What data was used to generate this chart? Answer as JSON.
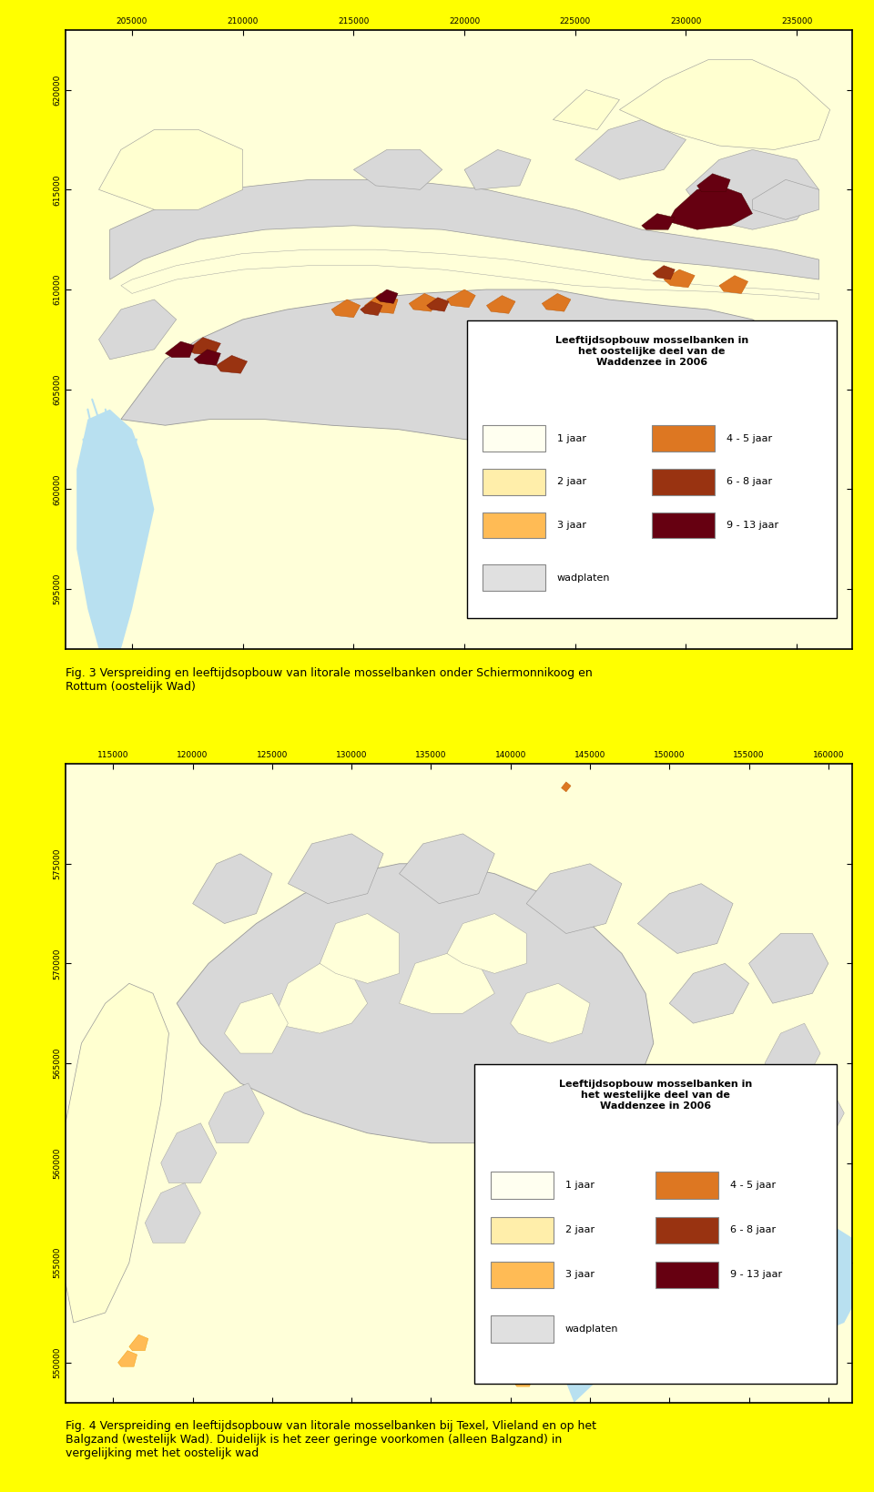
{
  "fig_width": 9.6,
  "fig_height": 16.39,
  "bg_color": "#ffffff",
  "outer_bg": "#ffff00",
  "map_sea_color": "#ffffd9",
  "map_wadplaten_color": "#d8d8d8",
  "map_water_channel_color": "#b8e0f0",
  "map_outline_color": "#999999",
  "map_border_color": "#000000",
  "map1": {
    "xlim": [
      202000,
      237500
    ],
    "ylim": [
      592000,
      623000
    ],
    "xticks": [
      205000,
      210000,
      215000,
      220000,
      225000,
      230000,
      235000
    ],
    "yticks": [
      595000,
      600000,
      605000,
      610000,
      615000,
      620000
    ],
    "title": "Leeftijdsopbouw mosselbanken in\nhet oostelijke deel van de\nWaddenzee in 2006",
    "legend_items_col1": [
      {
        "label": "1 jaar",
        "color": "#fffff0"
      },
      {
        "label": "2 jaar",
        "color": "#ffeeaa"
      },
      {
        "label": "3 jaar",
        "color": "#ffbb55"
      }
    ],
    "legend_items_col2": [
      {
        "label": "4 - 5 jaar",
        "color": "#dd7722"
      },
      {
        "label": "6 - 8 jaar",
        "color": "#993311"
      },
      {
        "label": "9 - 13 jaar",
        "color": "#660011"
      }
    ],
    "legend_wadplaten": {
      "label": "wadplaten",
      "color": "#e0e0e0"
    },
    "caption": "Fig. 3 Verspreiding en leeftijdsopbouw van litorale mosselbanken onder Schiermonnikoog en\nRottum (oostelijk Wad)"
  },
  "map2": {
    "xlim": [
      112000,
      161500
    ],
    "ylim": [
      548000,
      580000
    ],
    "xticks": [
      115000,
      120000,
      125000,
      130000,
      135000,
      140000,
      145000,
      150000,
      155000,
      160000
    ],
    "yticks": [
      550000,
      555000,
      560000,
      565000,
      570000,
      575000
    ],
    "title": "Leeftijdsopbouw mosselbanken in\nhet westelijke deel van de\nWaddenzee in 2006",
    "legend_items_col1": [
      {
        "label": "1 jaar",
        "color": "#fffff0"
      },
      {
        "label": "2 jaar",
        "color": "#ffeeaa"
      },
      {
        "label": "3 jaar",
        "color": "#ffbb55"
      }
    ],
    "legend_items_col2": [
      {
        "label": "4 - 5 jaar",
        "color": "#dd7722"
      },
      {
        "label": "6 - 8 jaar",
        "color": "#993311"
      },
      {
        "label": "9 - 13 jaar",
        "color": "#660011"
      }
    ],
    "legend_wadplaten": {
      "label": "wadplaten",
      "color": "#e0e0e0"
    },
    "caption": "Fig. 4 Verspreiding en leeftijdsopbouw van litorale mosselbanken bij Texel, Vlieland en op het\nBalgzand (westelijk Wad). Duidelijk is het zeer geringe voorkomen (alleen Balgzand) in\nvergelijking met het oostelijk wad"
  }
}
